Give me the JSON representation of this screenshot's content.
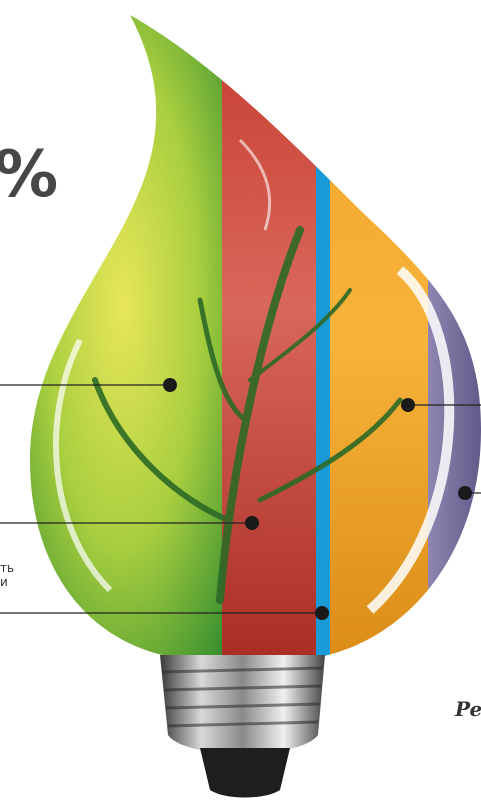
{
  "headline": {
    "percent": "%"
  },
  "labels": {
    "line_a": "ть",
    "line_b": "и"
  },
  "caption": {
    "text": "Pe"
  },
  "colors": {
    "green": "#8cc63f",
    "red": "#c1392b",
    "blue": "#1a9ad7",
    "orange": "#f5a623",
    "purple": "#7a6f9b",
    "leader": "#222222"
  }
}
